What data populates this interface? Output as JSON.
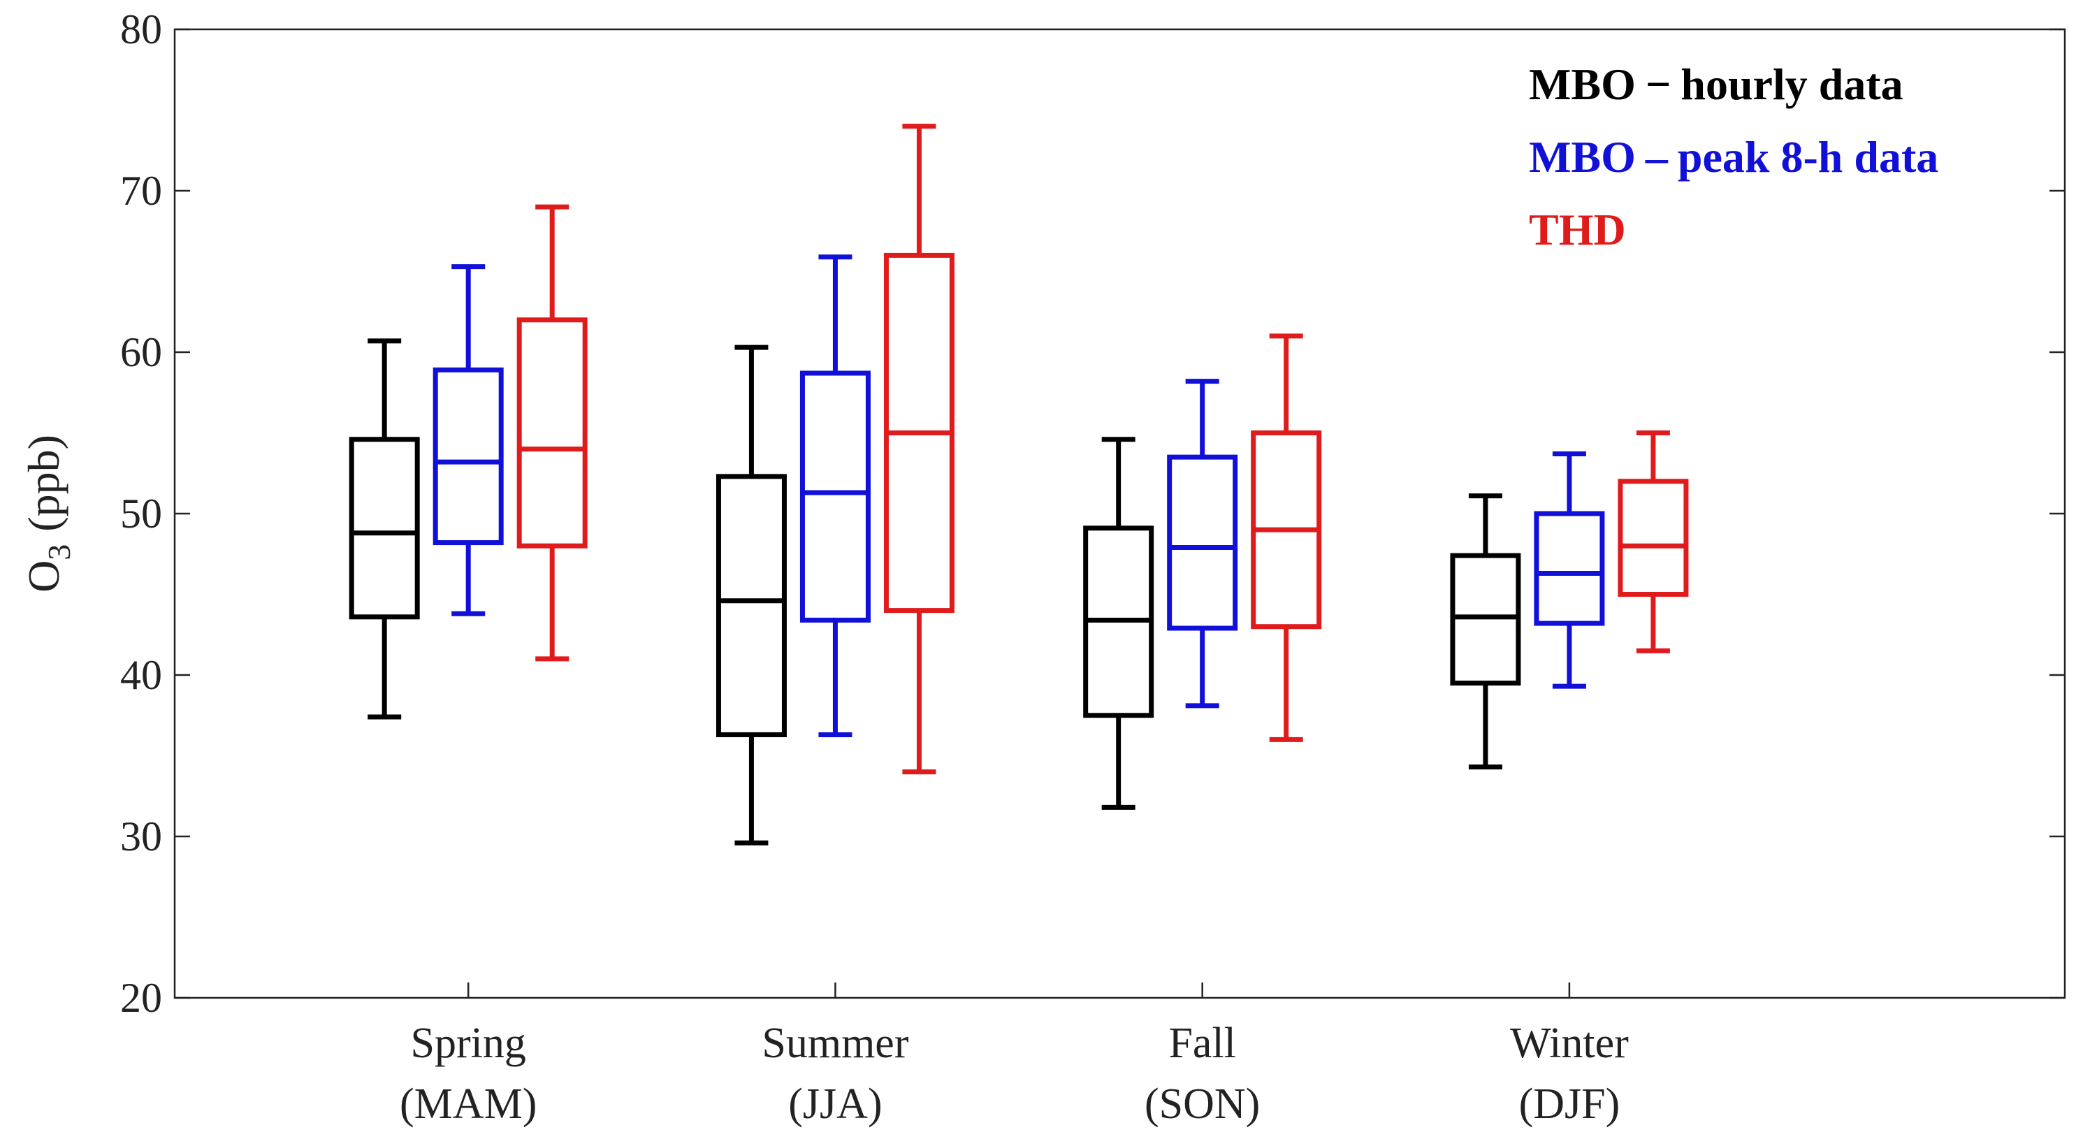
{
  "chart_data": {
    "type": "boxplot",
    "title": "",
    "xlabel": "",
    "ylabel": {
      "main": "O",
      "sub": "3",
      "units": "(ppb)"
    },
    "ylim": [
      20,
      80
    ],
    "yticks": [
      20,
      30,
      40,
      50,
      60,
      70,
      80
    ],
    "categories": [
      {
        "line1": "Spring",
        "line2": "(MAM)"
      },
      {
        "line1": "Summer",
        "line2": "(JJA)"
      },
      {
        "line1": "Fall",
        "line2": "(SON)"
      },
      {
        "line1": "Winter",
        "line2": "(DJF)"
      }
    ],
    "series": [
      {
        "name": "MBO – hourly data",
        "legend_label": "MBO",
        "legend_dash": "−",
        "legend_suffix": "hourly data",
        "color": "#000000",
        "boxes": [
          {
            "whisker_low": 37.4,
            "q1": 43.6,
            "median": 48.8,
            "q3": 54.6,
            "whisker_high": 60.7
          },
          {
            "whisker_low": 29.6,
            "q1": 36.3,
            "median": 44.6,
            "q3": 52.3,
            "whisker_high": 60.3
          },
          {
            "whisker_low": 31.8,
            "q1": 37.5,
            "median": 43.4,
            "q3": 49.1,
            "whisker_high": 54.6
          },
          {
            "whisker_low": 34.3,
            "q1": 39.5,
            "median": 43.6,
            "q3": 47.4,
            "whisker_high": 51.1
          }
        ]
      },
      {
        "name": "MBO – peak 8-h data",
        "legend_label": "MBO",
        "legend_dash": "–",
        "legend_suffix": "peak 8-h data",
        "color": "#1010d8",
        "boxes": [
          {
            "whisker_low": 43.8,
            "q1": 48.2,
            "median": 53.2,
            "q3": 58.9,
            "whisker_high": 65.3
          },
          {
            "whisker_low": 36.3,
            "q1": 43.4,
            "median": 51.3,
            "q3": 58.7,
            "whisker_high": 65.9
          },
          {
            "whisker_low": 38.1,
            "q1": 42.9,
            "median": 47.9,
            "q3": 53.5,
            "whisker_high": 58.2
          },
          {
            "whisker_low": 39.3,
            "q1": 43.2,
            "median": 46.3,
            "q3": 50.0,
            "whisker_high": 53.7
          }
        ]
      },
      {
        "name": "THD",
        "legend_label": "THD",
        "legend_dash": "",
        "legend_suffix": "",
        "color": "#e01b1b",
        "boxes": [
          {
            "whisker_low": 41.0,
            "q1": 48.0,
            "median": 54.0,
            "q3": 62.0,
            "whisker_high": 69.0
          },
          {
            "whisker_low": 34.0,
            "q1": 44.0,
            "median": 55.0,
            "q3": 66.0,
            "whisker_high": 74.0
          },
          {
            "whisker_low": 36.0,
            "q1": 43.0,
            "median": 49.0,
            "q3": 55.0,
            "whisker_high": 61.0
          },
          {
            "whisker_low": 41.5,
            "q1": 45.0,
            "median": 48.0,
            "q3": 52.0,
            "whisker_high": 55.0
          }
        ]
      }
    ],
    "legend_position": "top-right",
    "grid": false
  }
}
